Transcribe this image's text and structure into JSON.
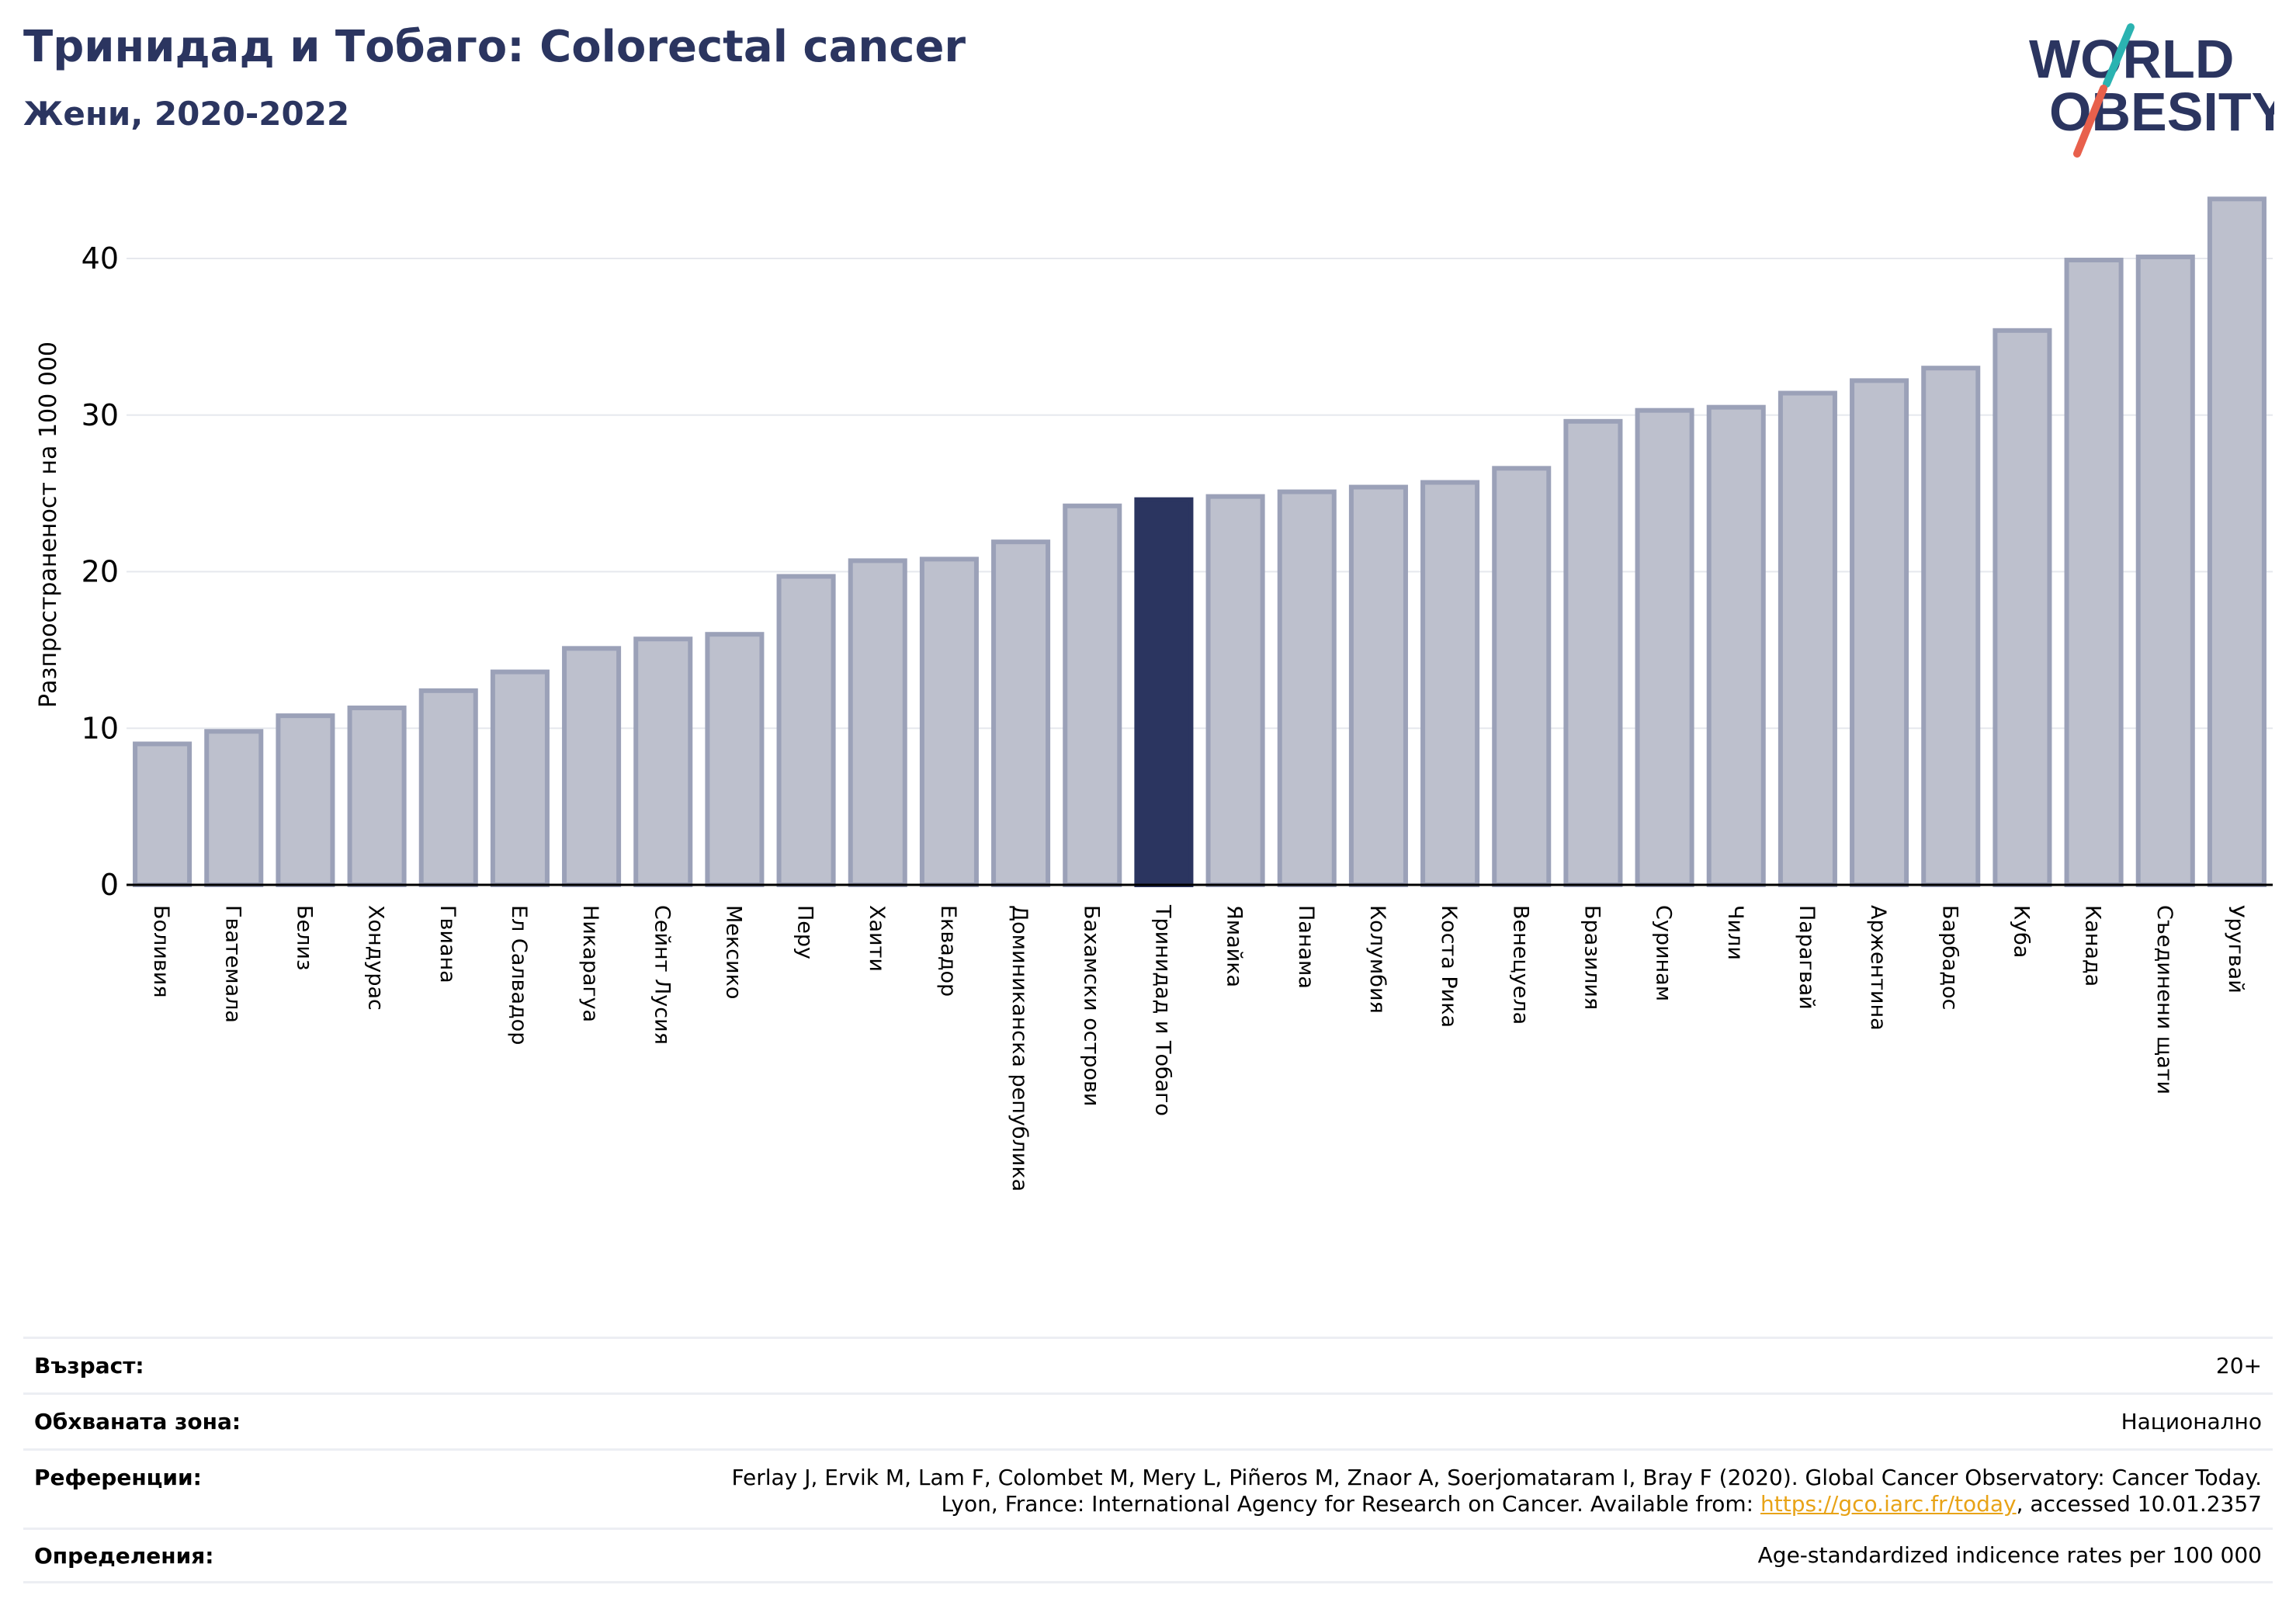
{
  "header": {
    "title": "Тринидад и Тобаго: Colorectal cancer",
    "subtitle": "Жени, 2020-2022"
  },
  "logo": {
    "line1": "WORLD",
    "line2": "OBESITY",
    "colors": {
      "text": "#2b3560",
      "slash_top": "#2bb3b1",
      "slash_bottom": "#e8604c"
    }
  },
  "colors": {
    "bar": "#bdc0cd",
    "bar_edge": "#9ba1b8",
    "highlight": "#2b3560",
    "grid": "#e6e8ee",
    "axis": "#000000"
  },
  "chart_data": {
    "type": "bar",
    "ylabel": "Разпространеност  на 100 000",
    "ylim": [
      0,
      45
    ],
    "yticks": [
      0,
      10,
      20,
      30,
      40
    ],
    "grid": true,
    "highlight": "Тринидад и Тобаго",
    "categories": [
      "Боливия",
      "Гватемала",
      "Белиз",
      "Хондурас",
      "Гвиана",
      "Ел Салвадор",
      "Никарагуа",
      "Сейнт Лусия",
      "Мексико",
      "Перу",
      "Хаити",
      "Еквадор",
      "Доминиканска република",
      "Бахамски острови",
      "Тринидад и Тобаго",
      "Ямайка",
      "Панама",
      "Колумбия",
      "Коста Рика",
      "Венецуела",
      "Бразилия",
      "Суринам",
      "Чили",
      "Парагвай",
      "Аржентина",
      "Барбадос",
      "Куба",
      "Канада",
      "Съединени щати",
      "Уругвай"
    ],
    "values": [
      9.0,
      9.8,
      10.8,
      11.3,
      12.4,
      13.6,
      15.1,
      15.7,
      16.0,
      19.7,
      20.7,
      20.8,
      21.9,
      24.2,
      24.6,
      24.8,
      25.1,
      25.4,
      25.7,
      26.6,
      29.6,
      30.3,
      30.5,
      31.4,
      32.2,
      33.0,
      35.4,
      39.9,
      40.1,
      43.8
    ]
  },
  "info": [
    {
      "label": "Възраст:",
      "value": [
        "20+"
      ]
    },
    {
      "label": "Обхваната зона:",
      "value": [
        "Национално"
      ]
    },
    {
      "label": "Референции:",
      "value": [
        "Ferlay J, Ervik M, Lam F, Colombet M, Mery L, Piñeros M, Znaor A, Soerjomataram I, Bray F (2020). Global Cancer Observatory: Cancer Today.",
        "Lyon, France: International Agency for Research on Cancer. Available from: ",
        "https://gco.iarc.fr/today",
        ", accessed 10.01.2357"
      ]
    },
    {
      "label": "Определения:",
      "value": [
        "Age-standardized indicence rates per 100 000"
      ]
    }
  ]
}
